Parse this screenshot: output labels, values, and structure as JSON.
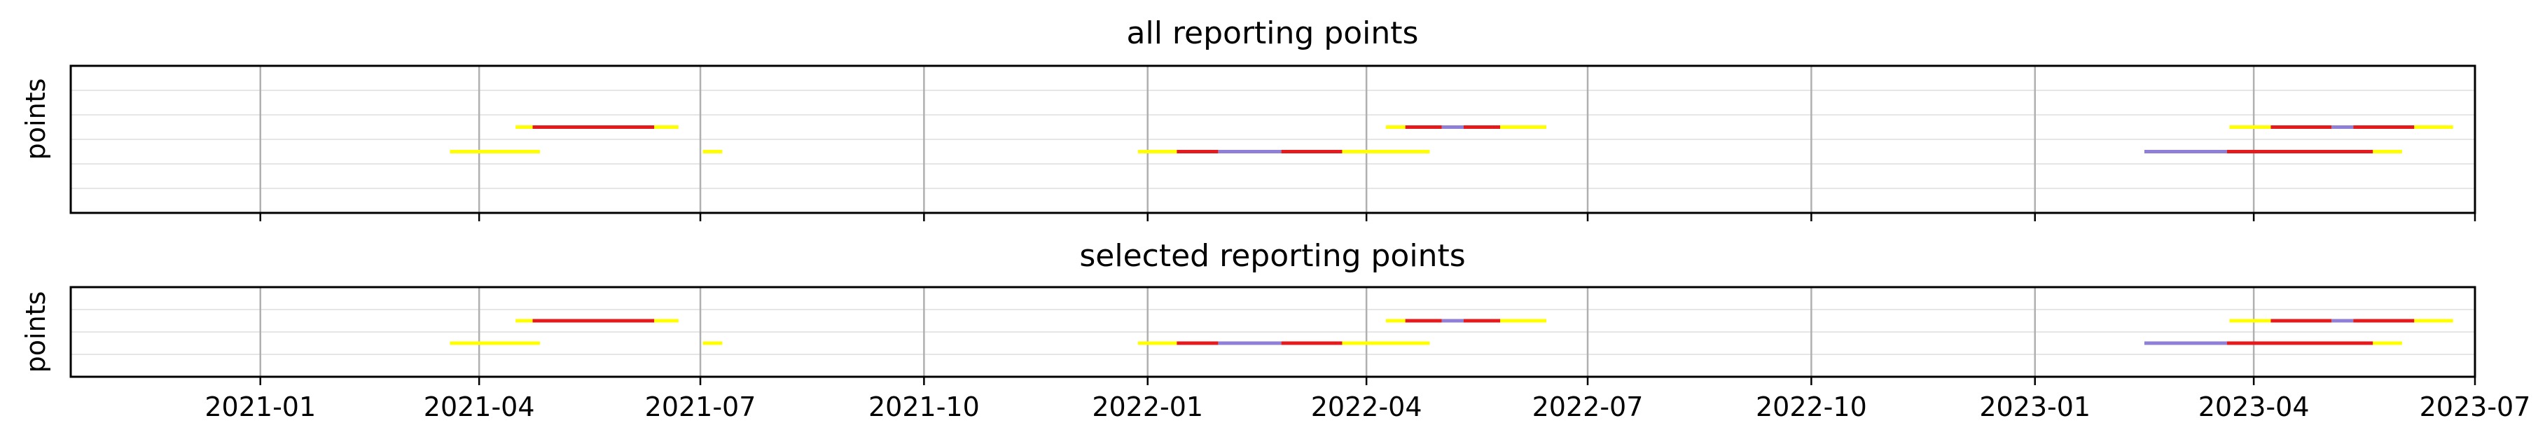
{
  "chart_data": [
    {
      "type": "timeline",
      "title": "all reporting points",
      "ylabel": "points",
      "xlim": [
        "2020-10-15",
        "2023-07-01"
      ],
      "x_ticks": [
        "2021-01",
        "2021-04",
        "2021-07",
        "2021-10",
        "2022-01",
        "2022-04",
        "2022-07",
        "2022-10",
        "2023-01",
        "2023-04",
        "2023-07"
      ],
      "x_tick_labels_shown": false,
      "rows": 5,
      "grid": {
        "x": true,
        "y": true
      },
      "colors": {
        "yellow": "#ffff00",
        "red": "#e41a1c",
        "purple": "#8f7fd6"
      },
      "segments": [
        {
          "row": 3,
          "start": "2021-04-16",
          "end": "2021-06-22",
          "color": "yellow"
        },
        {
          "row": 3,
          "start": "2021-04-23",
          "end": "2021-06-12",
          "color": "red"
        },
        {
          "row": 2,
          "start": "2021-03-20",
          "end": "2021-04-26",
          "color": "yellow"
        },
        {
          "row": 2,
          "start": "2021-07-02",
          "end": "2021-07-10",
          "color": "yellow"
        },
        {
          "row": 2,
          "start": "2021-12-28",
          "end": "2022-04-27",
          "color": "yellow"
        },
        {
          "row": 2,
          "start": "2022-01-13",
          "end": "2022-01-30",
          "color": "red"
        },
        {
          "row": 2,
          "start": "2022-01-30",
          "end": "2022-02-25",
          "color": "purple"
        },
        {
          "row": 2,
          "start": "2022-02-25",
          "end": "2022-03-22",
          "color": "red"
        },
        {
          "row": 3,
          "start": "2022-04-09",
          "end": "2022-06-14",
          "color": "yellow"
        },
        {
          "row": 3,
          "start": "2022-04-17",
          "end": "2022-05-02",
          "color": "red"
        },
        {
          "row": 3,
          "start": "2022-05-02",
          "end": "2022-05-11",
          "color": "purple"
        },
        {
          "row": 3,
          "start": "2022-05-11",
          "end": "2022-05-26",
          "color": "red"
        },
        {
          "row": 2,
          "start": "2023-02-15",
          "end": "2023-06-01",
          "color": "yellow"
        },
        {
          "row": 2,
          "start": "2023-02-15",
          "end": "2023-03-21",
          "color": "purple"
        },
        {
          "row": 2,
          "start": "2023-03-21",
          "end": "2023-05-20",
          "color": "red"
        },
        {
          "row": 3,
          "start": "2023-03-22",
          "end": "2023-06-22",
          "color": "yellow"
        },
        {
          "row": 3,
          "start": "2023-04-08",
          "end": "2023-05-03",
          "color": "red"
        },
        {
          "row": 3,
          "start": "2023-05-03",
          "end": "2023-05-12",
          "color": "purple"
        },
        {
          "row": 3,
          "start": "2023-05-12",
          "end": "2023-06-06",
          "color": "red"
        }
      ]
    },
    {
      "type": "timeline",
      "title": "selected reporting points",
      "ylabel": "points",
      "xlim": [
        "2020-10-15",
        "2023-07-01"
      ],
      "x_ticks": [
        "2021-01",
        "2021-04",
        "2021-07",
        "2021-10",
        "2022-01",
        "2022-04",
        "2022-07",
        "2022-10",
        "2023-01",
        "2023-04",
        "2023-07"
      ],
      "x_tick_labels_shown": true,
      "rows": 3,
      "grid": {
        "x": true,
        "y": true
      },
      "colors": {
        "yellow": "#ffff00",
        "red": "#e41a1c",
        "purple": "#8f7fd6"
      },
      "segments": [
        {
          "row": 2,
          "start": "2021-04-16",
          "end": "2021-06-22",
          "color": "yellow"
        },
        {
          "row": 2,
          "start": "2021-04-23",
          "end": "2021-06-12",
          "color": "red"
        },
        {
          "row": 1,
          "start": "2021-03-20",
          "end": "2021-04-26",
          "color": "yellow"
        },
        {
          "row": 1,
          "start": "2021-07-02",
          "end": "2021-07-10",
          "color": "yellow"
        },
        {
          "row": 1,
          "start": "2021-12-28",
          "end": "2022-04-27",
          "color": "yellow"
        },
        {
          "row": 1,
          "start": "2022-01-13",
          "end": "2022-01-30",
          "color": "red"
        },
        {
          "row": 1,
          "start": "2022-01-30",
          "end": "2022-02-25",
          "color": "purple"
        },
        {
          "row": 1,
          "start": "2022-02-25",
          "end": "2022-03-22",
          "color": "red"
        },
        {
          "row": 2,
          "start": "2022-04-09",
          "end": "2022-06-14",
          "color": "yellow"
        },
        {
          "row": 2,
          "start": "2022-04-17",
          "end": "2022-05-02",
          "color": "red"
        },
        {
          "row": 2,
          "start": "2022-05-02",
          "end": "2022-05-11",
          "color": "purple"
        },
        {
          "row": 2,
          "start": "2022-05-11",
          "end": "2022-05-26",
          "color": "red"
        },
        {
          "row": 1,
          "start": "2023-02-15",
          "end": "2023-06-01",
          "color": "yellow"
        },
        {
          "row": 1,
          "start": "2023-02-15",
          "end": "2023-03-21",
          "color": "purple"
        },
        {
          "row": 1,
          "start": "2023-03-21",
          "end": "2023-05-20",
          "color": "red"
        },
        {
          "row": 2,
          "start": "2023-03-22",
          "end": "2023-06-22",
          "color": "yellow"
        },
        {
          "row": 2,
          "start": "2023-04-08",
          "end": "2023-05-03",
          "color": "red"
        },
        {
          "row": 2,
          "start": "2023-05-03",
          "end": "2023-05-12",
          "color": "purple"
        },
        {
          "row": 2,
          "start": "2023-05-12",
          "end": "2023-06-06",
          "color": "red"
        }
      ]
    }
  ]
}
